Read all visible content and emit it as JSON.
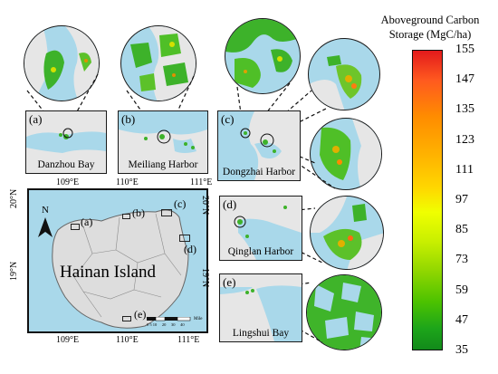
{
  "legend": {
    "title_line1": "Aboveground Carbon",
    "title_line2": "Storage (MgC/ha)",
    "ticks": [
      "155",
      "147",
      "135",
      "123",
      "111",
      "97",
      "85",
      "73",
      "59",
      "47",
      "35"
    ]
  },
  "panels": {
    "a": {
      "label": "(a)",
      "name": "Danzhou Bay"
    },
    "b": {
      "label": "(b)",
      "name": "Meiliang Harbor"
    },
    "c": {
      "label": "(c)",
      "name": "Dongzhai Harbor"
    },
    "d": {
      "label": "(d)",
      "name": "Qinglan Harbor"
    },
    "e": {
      "label": "(e)",
      "name": "Lingshui Bay"
    }
  },
  "main_map": {
    "island_name": "Hainan Island",
    "north_label": "N",
    "lon_top": [
      "109°E",
      "110°E",
      "111°E"
    ],
    "lon_bottom": [
      "109°E",
      "110°E",
      "111°E"
    ],
    "lat_left": [
      "20°N",
      "19°N"
    ],
    "lat_right": [
      "20°N",
      "19°N"
    ],
    "markers": [
      "(a)",
      "(b)",
      "(c)",
      "(d)",
      "(e)"
    ],
    "scale_ticks": "0 5 10     20     30     40",
    "scale_unit": "Mile"
  },
  "colors": {
    "water": "#a9d8ea",
    "land": "#e6e6e6",
    "mangrove_high": "#e31a1c",
    "mangrove_low": "#128a1a"
  }
}
